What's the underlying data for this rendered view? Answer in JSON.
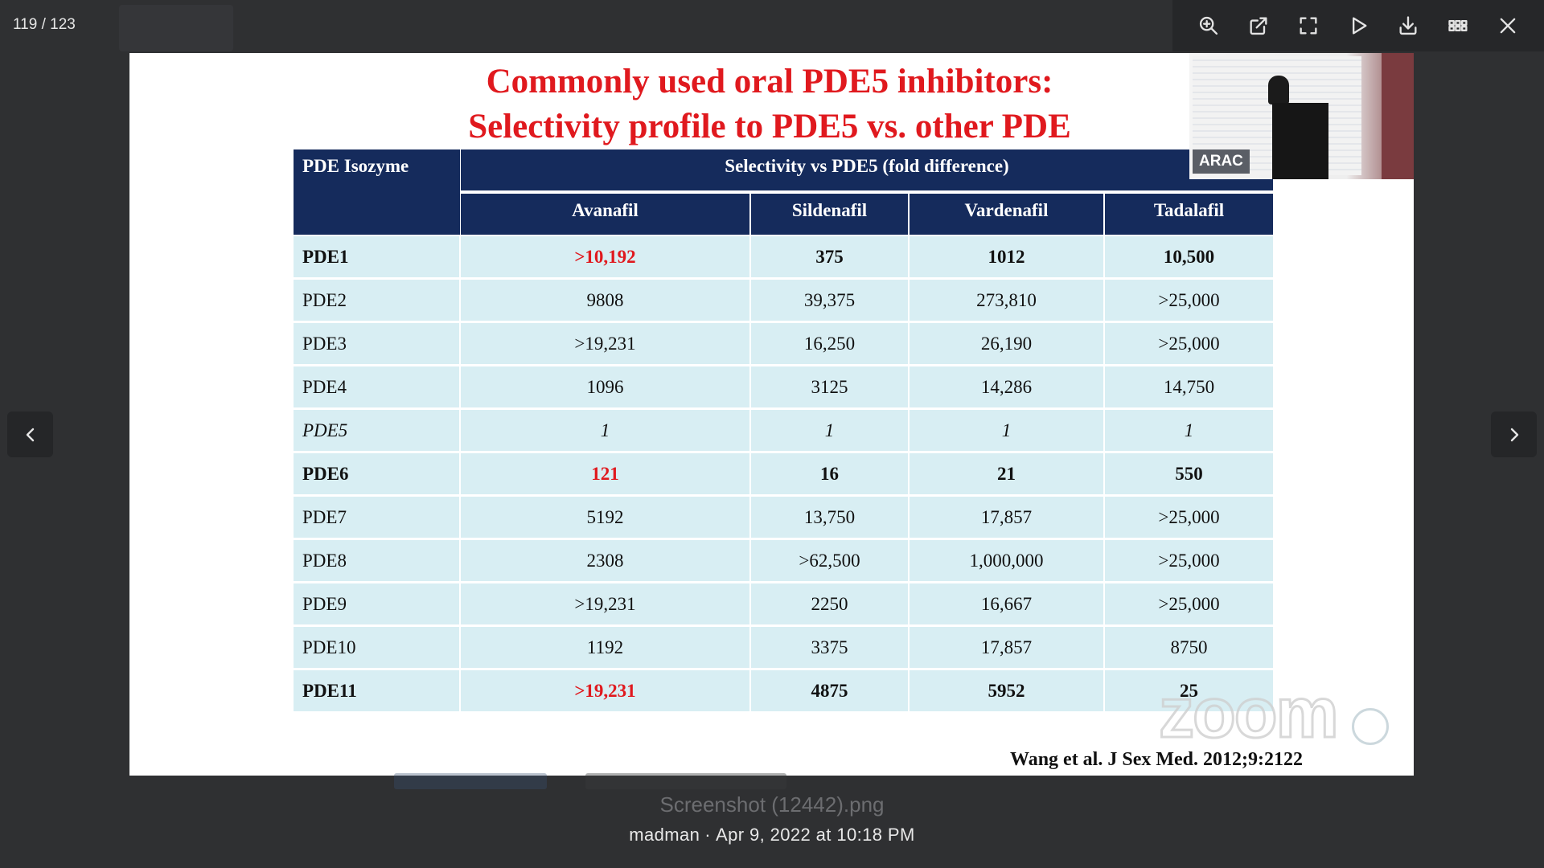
{
  "viewer": {
    "counter": "119 / 123",
    "tools": [
      "zoom-in-icon",
      "open-external-icon",
      "fullscreen-icon",
      "play-icon",
      "download-icon",
      "grid-icon",
      "close-icon"
    ]
  },
  "slide": {
    "title_line1": "Commonly used oral PDE5 inhibitors:",
    "title_line2": "Selectivity profile to PDE5 vs. other PDE",
    "header_isozyme": "PDE Isozyme",
    "header_selectivity": "Selectivity vs PDE5 (fold difference)",
    "drugs": [
      "Avanafil",
      "Sildenafil",
      "Vardenafil",
      "Tadalafil"
    ],
    "rows": [
      {
        "name": "PDE1",
        "values": [
          ">10,192",
          "375",
          "1012",
          "10,500"
        ]
      },
      {
        "name": "PDE2",
        "values": [
          "9808",
          "39,375",
          "273,810",
          ">25,000"
        ]
      },
      {
        "name": "PDE3",
        "values": [
          ">19,231",
          "16,250",
          "26,190",
          ">25,000"
        ]
      },
      {
        "name": "PDE4",
        "values": [
          "1096",
          "3125",
          "14,286",
          "14,750"
        ]
      },
      {
        "name": "PDE5",
        "values": [
          "1",
          "1",
          "1",
          "1"
        ]
      },
      {
        "name": "PDE6",
        "values": [
          "121",
          "16",
          "21",
          "550"
        ]
      },
      {
        "name": "PDE7",
        "values": [
          "5192",
          "13,750",
          "17,857",
          ">25,000"
        ]
      },
      {
        "name": "PDE8",
        "values": [
          "2308",
          ">62,500",
          "1,000,000",
          ">25,000"
        ]
      },
      {
        "name": "PDE9",
        "values": [
          ">19,231",
          "2250",
          "16,667",
          ">25,000"
        ]
      },
      {
        "name": "PDE10",
        "values": [
          "1192",
          "3375",
          "17,857",
          "8750"
        ]
      },
      {
        "name": "PDE11",
        "values": [
          ">19,231",
          "4875",
          "5952",
          "25"
        ]
      }
    ],
    "citation": "Wang et al. J Sex Med. 2012;9:2122",
    "inset_badge": "ARAC",
    "watermark": "zoom",
    "colors": {
      "title": "#e0191e",
      "header_bg": "#152b5c",
      "cell_bg": "#d8eef3"
    }
  },
  "footer": {
    "filename": "Screenshot (12442).png",
    "author": "madman",
    "separator": "·",
    "timestamp": "Apr 9, 2022 at 10:18 PM"
  }
}
